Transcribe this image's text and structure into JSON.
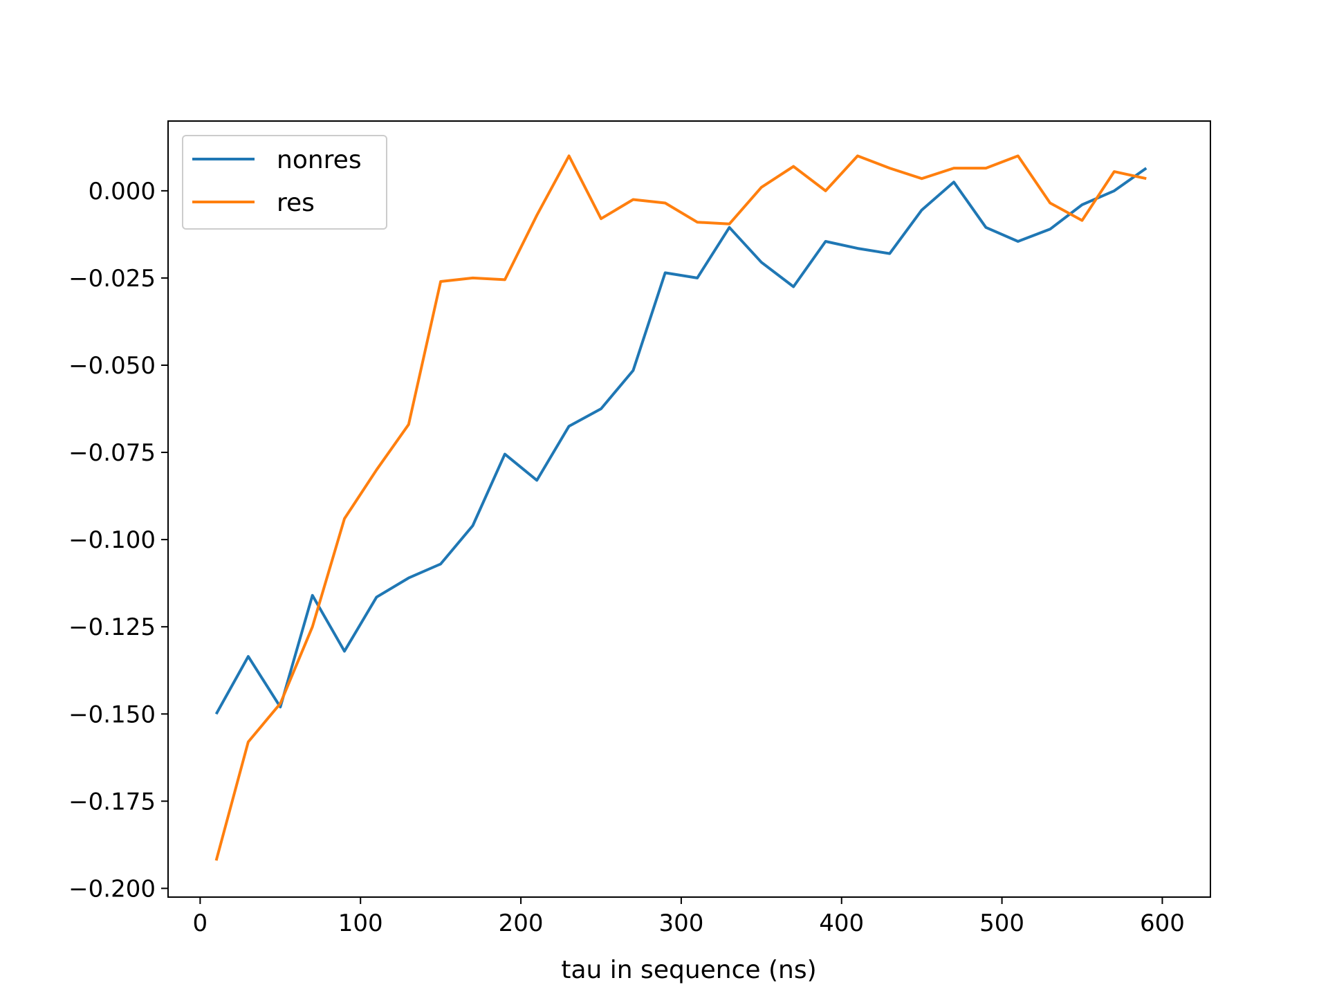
{
  "chart_data": {
    "type": "line",
    "title": "",
    "xlabel": "tau in sequence (ns)",
    "ylabel": "",
    "xlim": [
      -20,
      630
    ],
    "ylim": [
      -0.2025,
      0.02
    ],
    "xticks": [
      0,
      100,
      200,
      300,
      400,
      500,
      600
    ],
    "xtick_labels": [
      "0",
      "100",
      "200",
      "300",
      "400",
      "500",
      "600"
    ],
    "yticks": [
      0.0,
      -0.025,
      -0.05,
      -0.075,
      -0.1,
      -0.125,
      -0.15,
      -0.175,
      -0.2
    ],
    "ytick_labels": [
      "0.000",
      "−0.025",
      "−0.050",
      "−0.075",
      "−0.100",
      "−0.125",
      "−0.150",
      "−0.175",
      "−0.200"
    ],
    "grid": false,
    "legend_position": "top-left",
    "x": [
      10,
      30,
      50,
      70,
      90,
      110,
      130,
      150,
      170,
      190,
      210,
      230,
      250,
      270,
      290,
      310,
      330,
      350,
      370,
      390,
      410,
      430,
      450,
      470,
      490,
      510,
      530,
      550,
      570,
      590
    ],
    "series": [
      {
        "name": "nonres",
        "color": "#1f77b4",
        "values": [
          -0.15,
          -0.1335,
          -0.148,
          -0.116,
          -0.132,
          -0.1165,
          -0.111,
          -0.107,
          -0.096,
          -0.0755,
          -0.083,
          -0.0675,
          -0.0625,
          -0.0515,
          -0.0235,
          -0.025,
          -0.0105,
          -0.0205,
          -0.0275,
          -0.0145,
          -0.0165,
          -0.018,
          -0.0055,
          0.0025,
          -0.0105,
          -0.0145,
          -0.011,
          -0.004,
          0.0,
          0.0065
        ]
      },
      {
        "name": "res",
        "color": "#ff7f0e",
        "values": [
          -0.192,
          -0.158,
          -0.147,
          -0.125,
          -0.094,
          -0.08,
          -0.067,
          -0.026,
          -0.025,
          -0.0255,
          -0.007,
          0.01,
          -0.008,
          -0.0025,
          -0.0035,
          -0.009,
          -0.0095,
          0.001,
          0.007,
          0.0,
          0.01,
          0.0065,
          0.0035,
          0.0065,
          0.0065,
          0.01,
          -0.0035,
          -0.0085,
          0.0055,
          0.0035
        ]
      }
    ]
  }
}
